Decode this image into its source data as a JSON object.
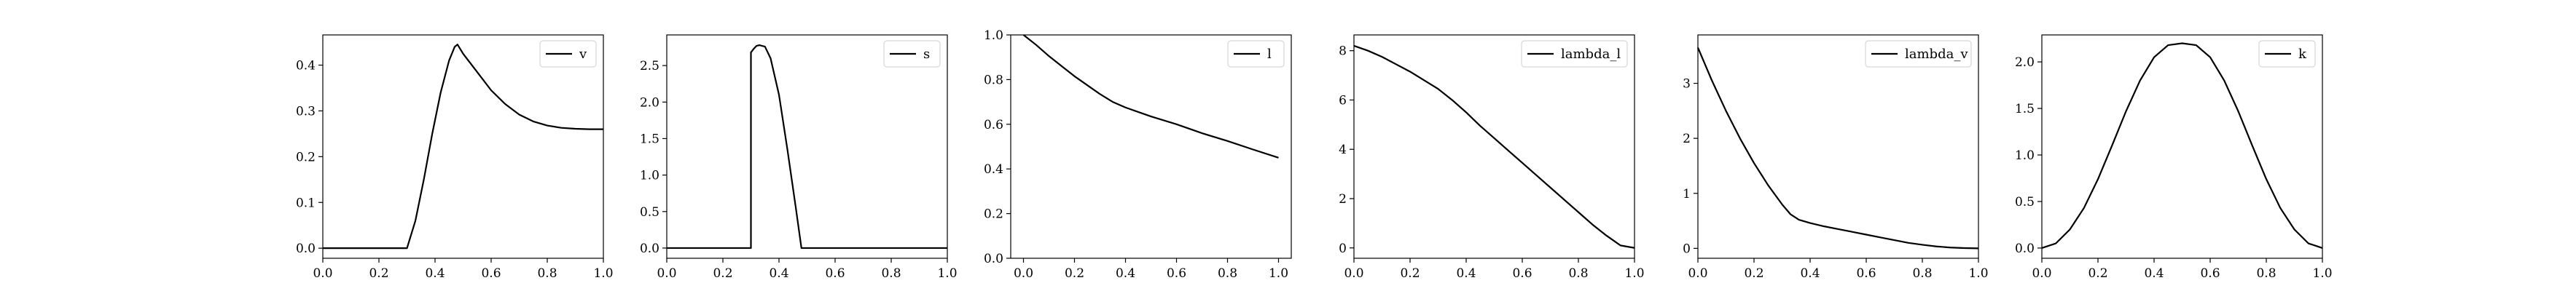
{
  "chart_data": [
    {
      "type": "line",
      "legend": [
        "v"
      ],
      "legend_loc": "upper right",
      "xlim": [
        0.0,
        1.0
      ],
      "ylim": [
        -0.022,
        0.466
      ],
      "xticks": [
        "0.0",
        "0.2",
        "0.4",
        "0.6",
        "0.8",
        "1.0"
      ],
      "yticks": [
        0.0,
        0.1,
        0.2,
        0.3,
        0.4
      ],
      "ytick_labels": [
        "0.0",
        "0.1",
        "0.2",
        "0.3",
        "0.4"
      ],
      "color": "#000000",
      "series": [
        {
          "name": "v",
          "x": [
            0.0,
            0.05,
            0.1,
            0.15,
            0.2,
            0.25,
            0.3,
            0.33,
            0.36,
            0.39,
            0.42,
            0.45,
            0.47,
            0.48,
            0.5,
            0.55,
            0.6,
            0.65,
            0.7,
            0.75,
            0.8,
            0.85,
            0.9,
            0.95,
            1.0
          ],
          "y": [
            0.0,
            0.0,
            0.0,
            0.0,
            0.0,
            0.0,
            0.0,
            0.06,
            0.15,
            0.25,
            0.34,
            0.41,
            0.44,
            0.445,
            0.425,
            0.385,
            0.345,
            0.315,
            0.292,
            0.277,
            0.268,
            0.263,
            0.261,
            0.26,
            0.26
          ]
        }
      ]
    },
    {
      "type": "line",
      "legend": [
        "s"
      ],
      "legend_loc": "upper right",
      "xlim": [
        0.0,
        1.0
      ],
      "ylim": [
        -0.14,
        2.92
      ],
      "xticks": [
        "0.0",
        "0.2",
        "0.4",
        "0.6",
        "0.8",
        "1.0"
      ],
      "yticks": [
        0.0,
        0.5,
        1.0,
        1.5,
        2.0,
        2.5
      ],
      "ytick_labels": [
        "0.0",
        "0.5",
        "1.0",
        "1.5",
        "2.0",
        "2.5"
      ],
      "color": "#000000",
      "series": [
        {
          "name": "s",
          "x": [
            0.0,
            0.1,
            0.2,
            0.3,
            0.3,
            0.31,
            0.32,
            0.33,
            0.35,
            0.37,
            0.4,
            0.43,
            0.46,
            0.48,
            0.5,
            0.6,
            0.7,
            0.8,
            0.9,
            1.0
          ],
          "y": [
            0.0,
            0.0,
            0.0,
            0.0,
            2.68,
            2.73,
            2.77,
            2.78,
            2.76,
            2.6,
            2.1,
            1.35,
            0.55,
            0.0,
            0.0,
            0.0,
            0.0,
            0.0,
            0.0,
            0.0
          ]
        }
      ]
    },
    {
      "type": "line",
      "legend": [
        "l"
      ],
      "legend_loc": "upper right",
      "xlim": [
        -0.05,
        1.05
      ],
      "ylim": [
        0.0,
        1.0
      ],
      "xticks": [
        "0.0",
        "0.2",
        "0.4",
        "0.6",
        "0.8",
        "1.0"
      ],
      "yticks": [
        0.0,
        0.2,
        0.4,
        0.6,
        0.8,
        1.0
      ],
      "ytick_labels": [
        "0.0",
        "0.2",
        "0.4",
        "0.6",
        "0.8",
        "1.0"
      ],
      "color": "#000000",
      "series": [
        {
          "name": "l",
          "x": [
            0.0,
            0.05,
            0.1,
            0.15,
            0.2,
            0.25,
            0.3,
            0.35,
            0.4,
            0.45,
            0.5,
            0.6,
            0.7,
            0.8,
            0.9,
            1.0
          ],
          "y": [
            1.0,
            0.955,
            0.905,
            0.86,
            0.815,
            0.775,
            0.735,
            0.7,
            0.675,
            0.655,
            0.635,
            0.6,
            0.56,
            0.525,
            0.487,
            0.45
          ]
        }
      ]
    },
    {
      "type": "line",
      "legend": [
        "lambda_l"
      ],
      "legend_loc": "upper right",
      "xlim": [
        0.0,
        1.0
      ],
      "ylim": [
        -0.42,
        8.64
      ],
      "xticks": [
        "0.0",
        "0.2",
        "0.4",
        "0.6",
        "0.8",
        "1.0"
      ],
      "yticks": [
        0,
        2,
        4,
        6,
        8
      ],
      "ytick_labels": [
        "0",
        "2",
        "4",
        "6",
        "8"
      ],
      "color": "#000000",
      "series": [
        {
          "name": "lambda_l",
          "x": [
            0.0,
            0.05,
            0.1,
            0.15,
            0.2,
            0.25,
            0.3,
            0.35,
            0.4,
            0.45,
            0.5,
            0.55,
            0.6,
            0.65,
            0.7,
            0.75,
            0.8,
            0.85,
            0.9,
            0.95,
            1.0
          ],
          "y": [
            8.2,
            8.0,
            7.75,
            7.45,
            7.15,
            6.8,
            6.45,
            6.0,
            5.5,
            4.95,
            4.45,
            3.95,
            3.45,
            2.95,
            2.45,
            1.95,
            1.45,
            0.95,
            0.5,
            0.1,
            0.0
          ]
        }
      ]
    },
    {
      "type": "line",
      "legend": [
        "lambda_v"
      ],
      "legend_loc": "upper right",
      "xlim": [
        0.0,
        1.0
      ],
      "ylim": [
        -0.18,
        3.88
      ],
      "xticks": [
        "0.0",
        "0.2",
        "0.4",
        "0.6",
        "0.8",
        "1.0"
      ],
      "yticks": [
        0,
        1,
        2,
        3
      ],
      "ytick_labels": [
        "0",
        "1",
        "2",
        "3"
      ],
      "color": "#000000",
      "series": [
        {
          "name": "lambda_v",
          "x": [
            0.0,
            0.05,
            0.1,
            0.15,
            0.2,
            0.25,
            0.3,
            0.33,
            0.36,
            0.4,
            0.45,
            0.5,
            0.55,
            0.6,
            0.65,
            0.7,
            0.75,
            0.8,
            0.85,
            0.9,
            0.95,
            1.0
          ],
          "y": [
            3.65,
            3.05,
            2.5,
            2.0,
            1.55,
            1.15,
            0.8,
            0.62,
            0.52,
            0.46,
            0.4,
            0.35,
            0.3,
            0.25,
            0.2,
            0.15,
            0.1,
            0.065,
            0.035,
            0.015,
            0.005,
            0.0
          ]
        }
      ]
    },
    {
      "type": "line",
      "legend": [
        "k"
      ],
      "legend_loc": "upper right",
      "xlim": [
        0.0,
        1.0
      ],
      "ylim": [
        -0.11,
        2.29
      ],
      "xticks": [
        "0.0",
        "0.2",
        "0.4",
        "0.6",
        "0.8",
        "1.0"
      ],
      "yticks": [
        0.0,
        0.5,
        1.0,
        1.5,
        2.0
      ],
      "ytick_labels": [
        "0.0",
        "0.5",
        "1.0",
        "1.5",
        "2.0"
      ],
      "color": "#000000",
      "series": [
        {
          "name": "k",
          "x": [
            0.0,
            0.05,
            0.1,
            0.15,
            0.2,
            0.25,
            0.3,
            0.35,
            0.4,
            0.45,
            0.5,
            0.55,
            0.6,
            0.65,
            0.7,
            0.75,
            0.8,
            0.85,
            0.9,
            0.95,
            1.0
          ],
          "y": [
            0.0,
            0.05,
            0.2,
            0.43,
            0.74,
            1.1,
            1.47,
            1.8,
            2.05,
            2.18,
            2.2,
            2.18,
            2.05,
            1.8,
            1.47,
            1.1,
            0.74,
            0.43,
            0.2,
            0.05,
            0.0
          ]
        }
      ]
    }
  ]
}
